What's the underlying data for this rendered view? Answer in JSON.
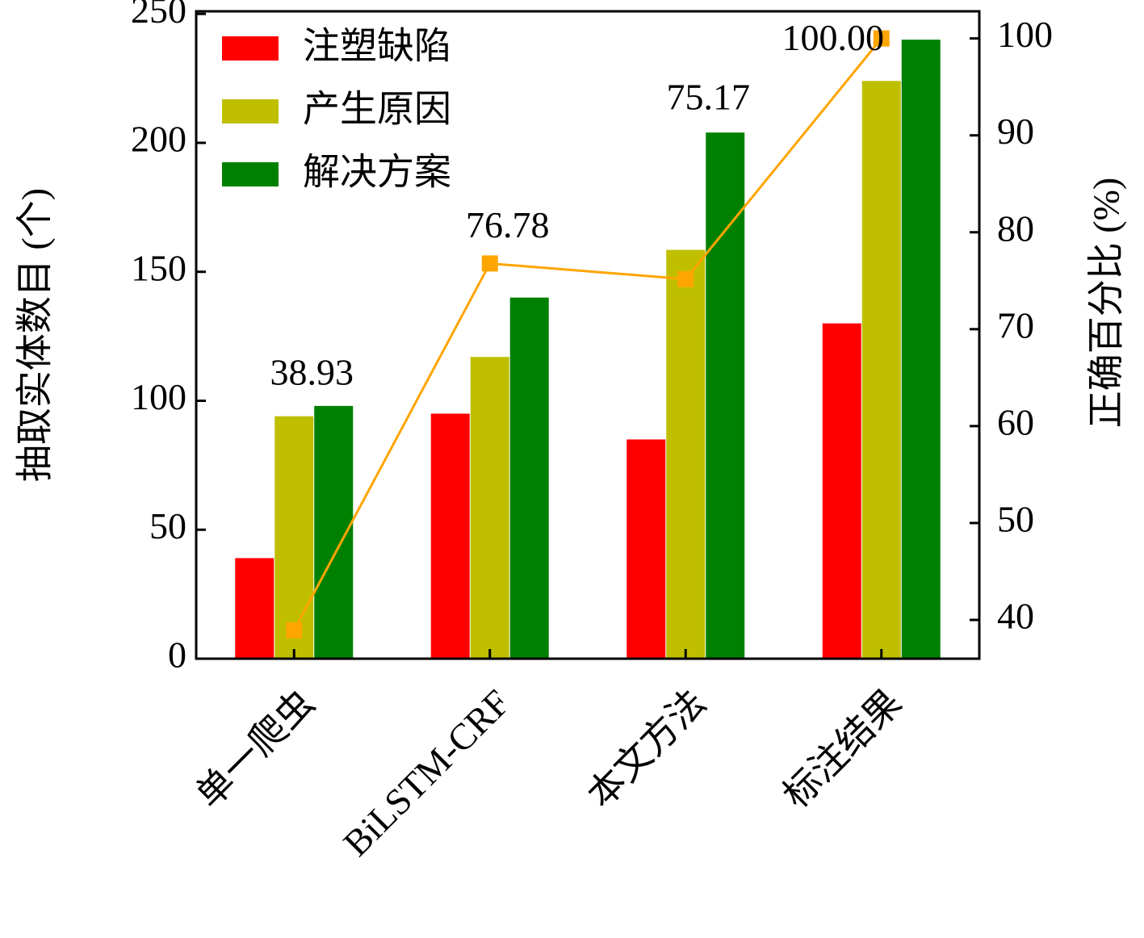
{
  "chart_data": {
    "type": "bar",
    "categories": [
      "单一爬虫",
      "BiLSTM-CRF",
      "本文方法",
      "标注结果"
    ],
    "series": [
      {
        "name": "注塑缺陷",
        "color": "#ff0000",
        "values": [
          39,
          95,
          85,
          130
        ]
      },
      {
        "name": "产生原因",
        "color": "#bfbf00",
        "values": [
          94,
          117,
          158.5,
          224
        ]
      },
      {
        "name": "解决方案",
        "color": "#008000",
        "values": [
          98,
          140,
          204,
          240
        ]
      },
      {
        "type": "line",
        "axis": "y2",
        "color": "#ffa500",
        "values": [
          38.93,
          76.78,
          75.17,
          100.0
        ],
        "value_labels": [
          "38.93",
          "76.78",
          "75.17",
          "100.00"
        ]
      }
    ],
    "y_label": "抽取实体数目 (个)",
    "y2_label": "正确百分比 (%)",
    "ylim": [
      0,
      251
    ],
    "yticks": [
      0,
      50,
      100,
      150,
      200,
      250
    ],
    "y2lim": [
      36,
      102.8
    ],
    "y2ticks": [
      40,
      50,
      60,
      70,
      80,
      90,
      100
    ],
    "legend": "upper left"
  }
}
